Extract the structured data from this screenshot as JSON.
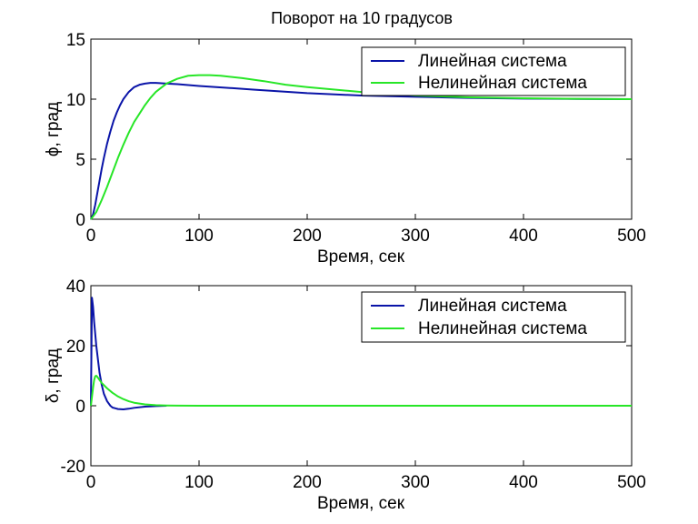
{
  "colors": {
    "linear": "#0a14a8",
    "nonlinear": "#27e627",
    "axes": "#000000",
    "background": "#ffffff"
  },
  "chart_data": [
    {
      "type": "line",
      "title": "Поворот на 10 градусов",
      "xlabel": "Время, сек",
      "ylabel": "ϕ, град",
      "xlim": [
        0,
        500
      ],
      "ylim": [
        0,
        15
      ],
      "xticks": [
        "0",
        "100",
        "200",
        "300",
        "400",
        "500"
      ],
      "yticks": [
        "0",
        "5",
        "10",
        "15"
      ],
      "legend_position": "top-right",
      "grid": false,
      "series": [
        {
          "name": "Линейная система",
          "color": "#0a14a8",
          "x": [
            0,
            2,
            4,
            6,
            8,
            10,
            12,
            15,
            18,
            21,
            24,
            27,
            30,
            35,
            40,
            45,
            50,
            55,
            60,
            70,
            80,
            100,
            150,
            200,
            250,
            300,
            350,
            400,
            450,
            500
          ],
          "y": [
            0,
            0.4,
            1.2,
            2.2,
            3.2,
            4.2,
            5.1,
            6.3,
            7.3,
            8.2,
            8.9,
            9.5,
            10.0,
            10.6,
            11.0,
            11.2,
            11.3,
            11.35,
            11.35,
            11.3,
            11.25,
            11.1,
            10.8,
            10.5,
            10.3,
            10.2,
            10.1,
            10.05,
            10.02,
            10.0
          ]
        },
        {
          "name": "Нелинейная система",
          "color": "#27e627",
          "x": [
            0,
            5,
            10,
            15,
            20,
            25,
            30,
            35,
            40,
            45,
            50,
            55,
            60,
            70,
            80,
            90,
            100,
            110,
            120,
            140,
            160,
            180,
            200,
            250,
            300,
            350,
            400,
            450,
            500
          ],
          "y": [
            0,
            0.6,
            1.6,
            2.7,
            3.9,
            5.1,
            6.2,
            7.2,
            8.1,
            8.8,
            9.5,
            10.1,
            10.6,
            11.3,
            11.7,
            11.95,
            12.0,
            12.0,
            11.95,
            11.75,
            11.5,
            11.2,
            11.0,
            10.6,
            10.3,
            10.15,
            10.08,
            10.03,
            10.0
          ]
        }
      ]
    },
    {
      "type": "line",
      "title": "",
      "xlabel": "Время, сек",
      "ylabel": "δ, град",
      "xlim": [
        0,
        500
      ],
      "ylim": [
        -20,
        40
      ],
      "xticks": [
        "0",
        "100",
        "200",
        "300",
        "400",
        "500"
      ],
      "yticks": [
        "-20",
        "0",
        "20",
        "40"
      ],
      "legend_position": "top-right",
      "grid": false,
      "series": [
        {
          "name": "Линейная система",
          "color": "#0a14a8",
          "x": [
            0,
            1,
            2,
            3,
            5,
            8,
            10,
            12,
            15,
            18,
            20,
            25,
            30,
            35,
            40,
            50,
            60,
            70
          ],
          "y": [
            0,
            36,
            33,
            28,
            20,
            11,
            7,
            4,
            1.5,
            0,
            -0.6,
            -1.1,
            -1.2,
            -1.0,
            -0.7,
            -0.3,
            -0.1,
            0
          ]
        },
        {
          "name": "Нелинейная система",
          "color": "#27e627",
          "x": [
            0,
            1,
            2,
            3,
            4,
            5,
            6,
            8,
            10,
            15,
            20,
            25,
            30,
            35,
            40,
            50,
            60,
            70,
            80,
            100,
            150,
            200,
            300,
            400,
            500
          ],
          "y": [
            0,
            3,
            6,
            8.5,
            9.8,
            10.0,
            9.6,
            8.6,
            7.6,
            5.8,
            4.3,
            3.1,
            2.2,
            1.5,
            1.0,
            0.45,
            0.2,
            0.08,
            0.03,
            0,
            0,
            0,
            0,
            0,
            0
          ]
        }
      ]
    }
  ]
}
